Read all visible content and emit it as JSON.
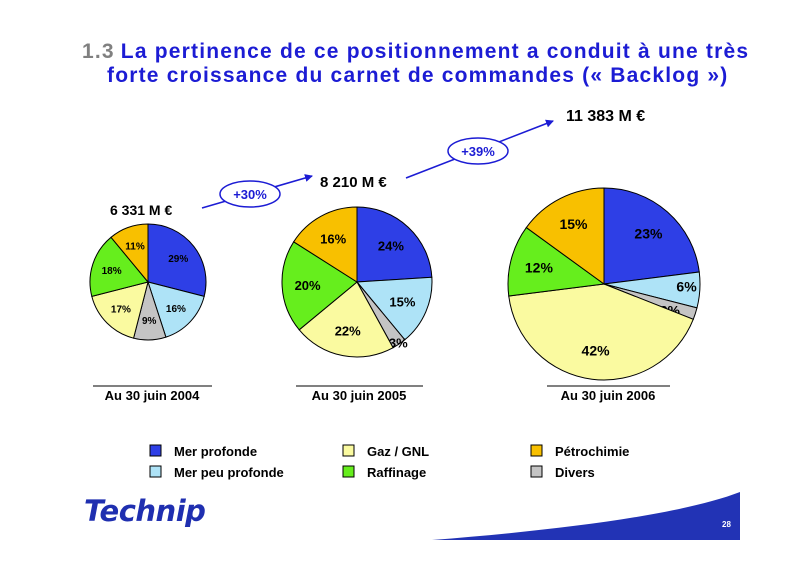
{
  "header": {
    "number": "1.3",
    "line1": "La pertinence de ce positionnement a conduit à une très",
    "line2": "forte croissance du carnet de commandes (« Backlog »)"
  },
  "chart_data": {
    "type": "pie",
    "categories": [
      "Mer profonde",
      "Mer peu profonde",
      "Divers",
      "Gaz / GNL",
      "Raffinage",
      "Pétrochimie"
    ],
    "colors": [
      "#2e3fe6",
      "#aee3f7",
      "#c4c4c4",
      "#fafaa0",
      "#66ee1d",
      "#f8c000"
    ],
    "pies": [
      {
        "period": "Au 30 juin 2004",
        "total": "6 331 M €",
        "values": [
          29,
          16,
          9,
          17,
          18,
          11
        ],
        "labels": [
          "29%",
          "16%",
          "9%",
          "17%",
          "18%",
          "11%"
        ]
      },
      {
        "period": "Au 30 juin 2005",
        "total": "8 210 M €",
        "values": [
          24,
          15,
          3,
          22,
          20,
          16
        ],
        "labels": [
          "24%",
          "15%",
          "3%",
          "22%",
          "20%",
          "16%"
        ]
      },
      {
        "period": "Au 30 juin 2006",
        "total": "11 383 M €",
        "values": [
          23,
          6,
          2,
          42,
          12,
          15
        ],
        "labels": [
          "23%",
          "6%",
          "2%",
          "42%",
          "12%",
          "15%"
        ]
      }
    ],
    "growth": [
      "+30%",
      "+39%"
    ],
    "legend": [
      "Mer profonde",
      "Mer peu profonde",
      "Gaz / GNL",
      "Raffinage",
      "Pétrochimie",
      "Divers"
    ]
  },
  "footer": {
    "logo": "Technip",
    "page": "28"
  }
}
